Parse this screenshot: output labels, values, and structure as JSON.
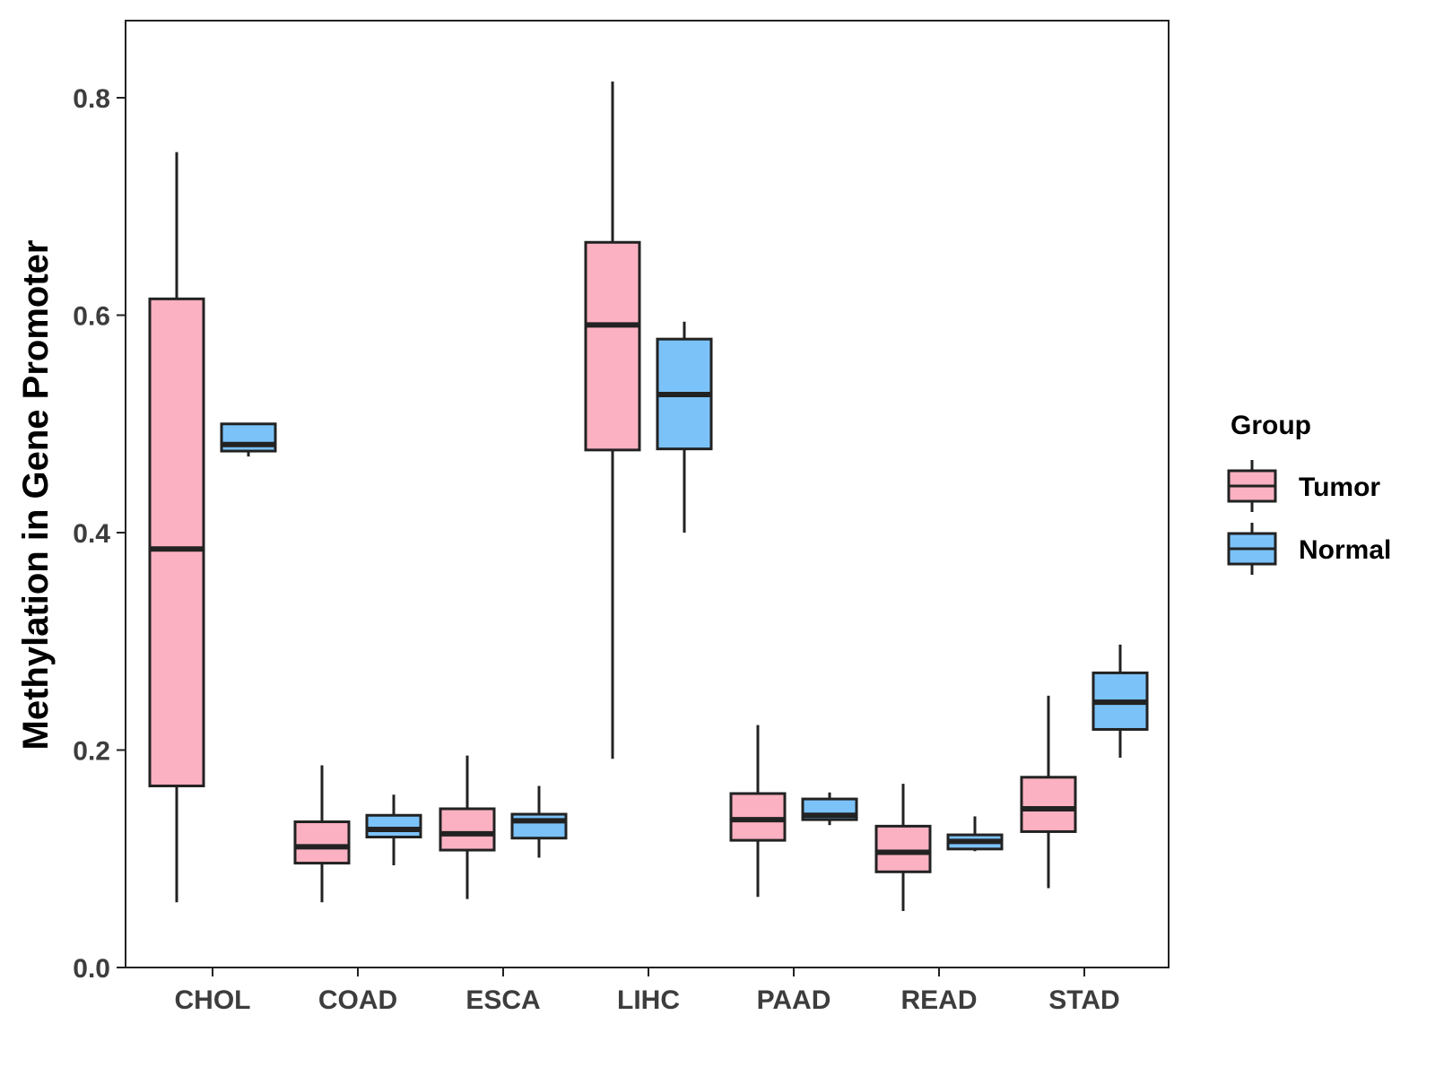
{
  "chart_data": {
    "type": "boxplot",
    "title": "",
    "xlabel": "",
    "ylabel": "Methylation in Gene Promoter",
    "ylim": [
      0.0,
      0.87
    ],
    "yticks": [
      0.0,
      0.2,
      0.4,
      0.6,
      0.8
    ],
    "ytick_labels": [
      "0.0",
      "0.2",
      "0.4",
      "0.6",
      "0.8"
    ],
    "grid": false,
    "categories": [
      "CHOL",
      "COAD",
      "ESCA",
      "LIHC",
      "PAAD",
      "READ",
      "STAD"
    ],
    "legend": {
      "title": "Group",
      "position": "right"
    },
    "series": [
      {
        "name": "Tumor",
        "color": "#fbb1c1",
        "boxes": [
          {
            "min": 0.06,
            "q1": 0.167,
            "median": 0.385,
            "q3": 0.615,
            "max": 0.75
          },
          {
            "min": 0.06,
            "q1": 0.096,
            "median": 0.111,
            "q3": 0.134,
            "max": 0.186
          },
          {
            "min": 0.063,
            "q1": 0.108,
            "median": 0.123,
            "q3": 0.146,
            "max": 0.195
          },
          {
            "min": 0.192,
            "q1": 0.476,
            "median": 0.591,
            "q3": 0.667,
            "max": 0.815
          },
          {
            "min": 0.065,
            "q1": 0.117,
            "median": 0.136,
            "q3": 0.16,
            "max": 0.223
          },
          {
            "min": 0.052,
            "q1": 0.088,
            "median": 0.106,
            "q3": 0.13,
            "max": 0.169
          },
          {
            "min": 0.073,
            "q1": 0.125,
            "median": 0.146,
            "q3": 0.175,
            "max": 0.25
          }
        ]
      },
      {
        "name": "Normal",
        "color": "#7bc2f9",
        "boxes": [
          {
            "min": 0.47,
            "q1": 0.475,
            "median": 0.481,
            "q3": 0.5,
            "max": 0.5
          },
          {
            "min": 0.094,
            "q1": 0.12,
            "median": 0.127,
            "q3": 0.14,
            "max": 0.159
          },
          {
            "min": 0.101,
            "q1": 0.119,
            "median": 0.135,
            "q3": 0.141,
            "max": 0.167
          },
          {
            "min": 0.4,
            "q1": 0.477,
            "median": 0.527,
            "q3": 0.578,
            "max": 0.594
          },
          {
            "min": 0.131,
            "q1": 0.136,
            "median": 0.14,
            "q3": 0.155,
            "max": 0.161
          },
          {
            "min": 0.107,
            "q1": 0.109,
            "median": 0.116,
            "q3": 0.122,
            "max": 0.139
          },
          {
            "min": 0.193,
            "q1": 0.219,
            "median": 0.244,
            "q3": 0.271,
            "max": 0.297
          }
        ]
      }
    ]
  }
}
